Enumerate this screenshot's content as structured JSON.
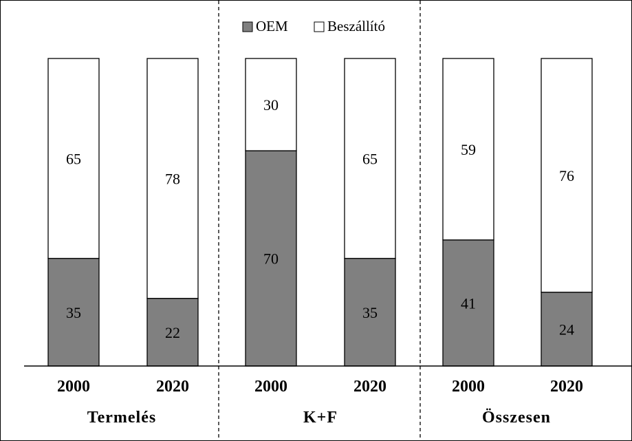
{
  "chart_data": {
    "type": "bar",
    "stacked": true,
    "percent_stacked": true,
    "groups": [
      {
        "label": "Termelés",
        "categories": [
          "2000",
          "2020"
        ]
      },
      {
        "label": "K+F",
        "categories": [
          "2000",
          "2020"
        ]
      },
      {
        "label": "Összesen",
        "categories": [
          "2000",
          "2020"
        ]
      }
    ],
    "series": [
      {
        "name": "OEM",
        "color": "#808080",
        "values": [
          35,
          22,
          70,
          35,
          41,
          24
        ]
      },
      {
        "name": "Beszállító",
        "color": "#ffffff",
        "values": [
          65,
          78,
          30,
          65,
          59,
          76
        ]
      }
    ],
    "ylim": [
      0,
      100
    ],
    "legend_position": "top-center",
    "grid": false,
    "group_separators": "dashed"
  }
}
